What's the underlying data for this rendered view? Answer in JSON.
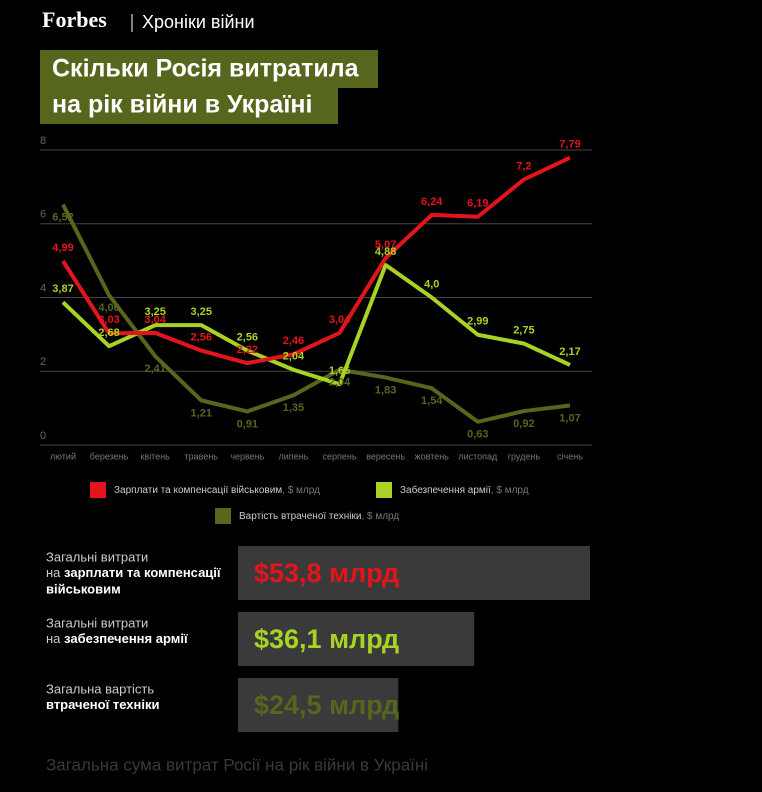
{
  "header": {
    "brand": "Forbes",
    "section": "Хроніки війни"
  },
  "title_lines": [
    "Скільки Росія витратила",
    "на рік війни в Україні"
  ],
  "chart_data": {
    "type": "line",
    "categories": [
      "лютий",
      "березень",
      "квітень",
      "травень",
      "червень",
      "липень",
      "серпень",
      "вересень",
      "жовтень",
      "листопад",
      "грудень",
      "січень"
    ],
    "ylim": [
      0,
      8
    ],
    "yticks": [
      0,
      2,
      4,
      6,
      8
    ],
    "grid": true,
    "legend_unit": ", $ млрд",
    "series": [
      {
        "name": "Зарплати та компенсації військовим",
        "color": "#e3141c",
        "values": [
          4.99,
          3.03,
          3.04,
          2.56,
          2.22,
          2.46,
          3.04,
          5.07,
          6.24,
          6.19,
          7.2,
          7.79
        ],
        "value_labels": [
          "4,99",
          "3,03",
          "3,04",
          "2,56",
          "2,22",
          "2,46",
          "3,04",
          "5,07",
          "6,24",
          "6,19",
          "7,2",
          "7,79"
        ]
      },
      {
        "name": "Забезпечення армії",
        "color": "#a8d324",
        "values": [
          3.87,
          2.68,
          3.25,
          3.25,
          2.56,
          2.04,
          1.65,
          4.88,
          4.0,
          2.99,
          2.75,
          2.17
        ],
        "value_labels": [
          "3,87",
          "2,68",
          "3,25",
          "3,25",
          "2,56",
          "2,04",
          "1,65",
          "4,88",
          "4,0",
          "2,99",
          "2,75",
          "2,17"
        ]
      },
      {
        "name": "Вартість втраченої техніки",
        "color": "#56661d",
        "values": [
          6.52,
          4.06,
          2.41,
          1.21,
          0.91,
          1.35,
          2.04,
          1.83,
          1.54,
          0.63,
          0.92,
          1.07
        ],
        "value_labels": [
          "6,52",
          "4,06",
          "2,41",
          "1,21",
          "0,91",
          "1,35",
          "2,04",
          "1,83",
          "1,54",
          "0,63",
          "0,92",
          "1,07"
        ]
      }
    ]
  },
  "totals": [
    {
      "label": "Загальні витрати",
      "label2": "на",
      "label_bold": "зарплати та компенсації військовим",
      "amount": 53.8,
      "amount_label": "$53,8 млрд",
      "color": "#e3141c"
    },
    {
      "label": "Загальні витрати",
      "label2": "на",
      "label_bold": "забезпечення армії",
      "amount": 36.1,
      "amount_label": "$36,1 млрд",
      "color": "#a8d324"
    },
    {
      "label": "Загальна вартість",
      "label2": "",
      "label_bold": "втраченої техніки",
      "amount": 24.5,
      "amount_label": "$24,5 млрд",
      "color": "#56661d"
    }
  ],
  "footer": "Загальна сума витрат Росії на рік війни в Україні"
}
